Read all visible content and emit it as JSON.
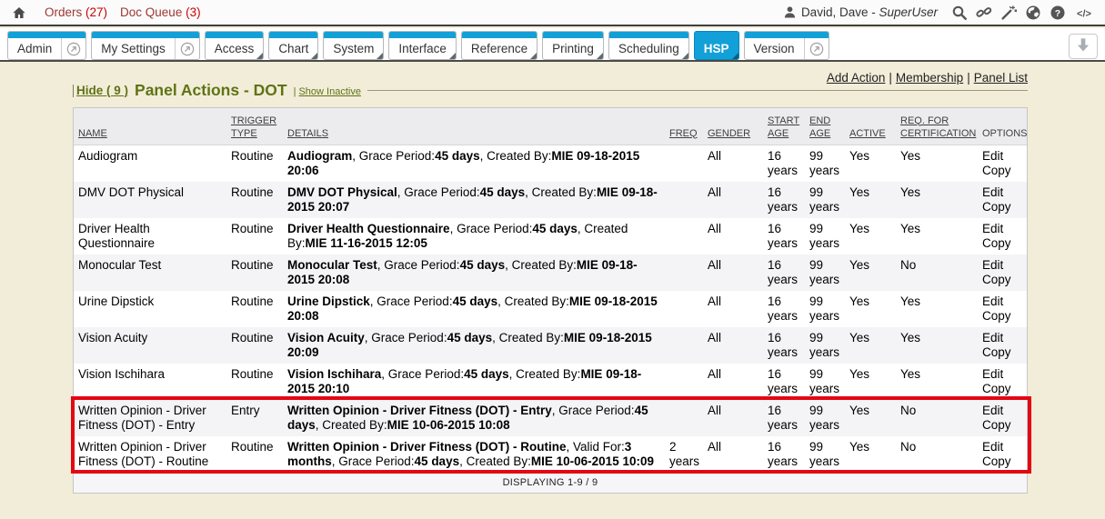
{
  "topbar": {
    "home_icon": "home-icon",
    "links": [
      {
        "label": "Orders",
        "count": "(27)"
      },
      {
        "label": "Doc Queue",
        "count": "(3)"
      }
    ],
    "user": {
      "icon": "person-icon",
      "name": "David, Dave - ",
      "role": "SuperUser"
    },
    "icons": [
      "search-icon",
      "link-icon",
      "wand-icon",
      "globe-icon",
      "help-icon",
      "code-icon"
    ]
  },
  "tabbar": {
    "tabs": [
      {
        "label": "Admin",
        "popout": true
      },
      {
        "label": "My Settings",
        "popout": true
      },
      {
        "label": "Access",
        "submenu": true
      },
      {
        "label": "Chart",
        "submenu": true
      },
      {
        "label": "System",
        "submenu": true
      },
      {
        "label": "Interface",
        "submenu": true
      },
      {
        "label": "Reference",
        "submenu": true
      },
      {
        "label": "Printing",
        "submenu": true
      },
      {
        "label": "Scheduling",
        "submenu": true
      },
      {
        "label": "HSP",
        "submenu": true,
        "active": true
      },
      {
        "label": "Version",
        "popout": true
      }
    ],
    "collapse_icon": "arrow-down-icon"
  },
  "actions": {
    "links": [
      "Add Action",
      "Membership",
      "Panel List"
    ]
  },
  "panel": {
    "hide_label": "Hide ( 9 )",
    "title": "Panel Actions - DOT",
    "show_inactive_label": "Show Inactive"
  },
  "table": {
    "columns": [
      {
        "label": "NAME",
        "sortable": true
      },
      {
        "label": "TRIGGER TYPE",
        "sortable": true
      },
      {
        "label": "DETAILS",
        "sortable": true
      },
      {
        "label": "FREQ",
        "sortable": true
      },
      {
        "label": "GENDER",
        "sortable": true
      },
      {
        "label": "START AGE",
        "sortable": true
      },
      {
        "label": "END AGE",
        "sortable": true
      },
      {
        "label": "ACTIVE",
        "sortable": true
      },
      {
        "label": "REQ. FOR CERTIFICATION",
        "sortable": true
      },
      {
        "label": "OPTIONS",
        "sortable": false
      }
    ],
    "rows": [
      {
        "name": "Audiogram",
        "trigger": "Routine",
        "details": [
          {
            "t": "Audiogram",
            "b": true
          },
          {
            "t": ", Grace Period:",
            "b": false
          },
          {
            "t": "45 days",
            "b": true
          },
          {
            "t": ", Created By:",
            "b": false
          },
          {
            "t": "MIE 09-18-2015 20:06",
            "b": true
          }
        ],
        "freq": "",
        "gender": "All",
        "start_age": "16 years",
        "end_age": "99 years",
        "active": "Yes",
        "req_cert": "Yes",
        "options": [
          "Edit",
          "Copy"
        ],
        "highlighted": false
      },
      {
        "name": "DMV DOT Physical",
        "trigger": "Routine",
        "details": [
          {
            "t": "DMV DOT Physical",
            "b": true
          },
          {
            "t": ", Grace Period:",
            "b": false
          },
          {
            "t": "45 days",
            "b": true
          },
          {
            "t": ", Created By:",
            "b": false
          },
          {
            "t": "MIE 09-18-2015 20:07",
            "b": true
          }
        ],
        "freq": "",
        "gender": "All",
        "start_age": "16 years",
        "end_age": "99 years",
        "active": "Yes",
        "req_cert": "Yes",
        "options": [
          "Edit",
          "Copy"
        ],
        "highlighted": false
      },
      {
        "name": "Driver Health Questionnaire",
        "trigger": "Routine",
        "details": [
          {
            "t": "Driver Health Questionnaire",
            "b": true
          },
          {
            "t": ", Grace Period:",
            "b": false
          },
          {
            "t": "45 days",
            "b": true
          },
          {
            "t": ", Created By:",
            "b": false
          },
          {
            "t": "MIE 11-16-2015 12:05",
            "b": true
          }
        ],
        "freq": "",
        "gender": "All",
        "start_age": "16 years",
        "end_age": "99 years",
        "active": "Yes",
        "req_cert": "Yes",
        "options": [
          "Edit",
          "Copy"
        ],
        "highlighted": false
      },
      {
        "name": "Monocular Test",
        "trigger": "Routine",
        "details": [
          {
            "t": "Monocular Test",
            "b": true
          },
          {
            "t": ", Grace Period:",
            "b": false
          },
          {
            "t": "45 days",
            "b": true
          },
          {
            "t": ", Created By:",
            "b": false
          },
          {
            "t": "MIE 09-18-2015 20:08",
            "b": true
          }
        ],
        "freq": "",
        "gender": "All",
        "start_age": "16 years",
        "end_age": "99 years",
        "active": "Yes",
        "req_cert": "No",
        "options": [
          "Edit",
          "Copy"
        ],
        "highlighted": false
      },
      {
        "name": "Urine Dipstick",
        "trigger": "Routine",
        "details": [
          {
            "t": "Urine Dipstick",
            "b": true
          },
          {
            "t": ", Grace Period:",
            "b": false
          },
          {
            "t": "45 days",
            "b": true
          },
          {
            "t": ", Created By:",
            "b": false
          },
          {
            "t": "MIE 09-18-2015 20:08",
            "b": true
          }
        ],
        "freq": "",
        "gender": "All",
        "start_age": "16 years",
        "end_age": "99 years",
        "active": "Yes",
        "req_cert": "Yes",
        "options": [
          "Edit",
          "Copy"
        ],
        "highlighted": false
      },
      {
        "name": "Vision Acuity",
        "trigger": "Routine",
        "details": [
          {
            "t": "Vision Acuity",
            "b": true
          },
          {
            "t": ", Grace Period:",
            "b": false
          },
          {
            "t": "45 days",
            "b": true
          },
          {
            "t": ", Created By:",
            "b": false
          },
          {
            "t": "MIE 09-18-2015 20:09",
            "b": true
          }
        ],
        "freq": "",
        "gender": "All",
        "start_age": "16 years",
        "end_age": "99 years",
        "active": "Yes",
        "req_cert": "Yes",
        "options": [
          "Edit",
          "Copy"
        ],
        "highlighted": false
      },
      {
        "name": "Vision Ischihara",
        "trigger": "Routine",
        "details": [
          {
            "t": "Vision Ischihara",
            "b": true
          },
          {
            "t": ", Grace Period:",
            "b": false
          },
          {
            "t": "45 days",
            "b": true
          },
          {
            "t": ", Created By:",
            "b": false
          },
          {
            "t": "MIE 09-18-2015 20:10",
            "b": true
          }
        ],
        "freq": "",
        "gender": "All",
        "start_age": "16 years",
        "end_age": "99 years",
        "active": "Yes",
        "req_cert": "Yes",
        "options": [
          "Edit",
          "Copy"
        ],
        "highlighted": false
      },
      {
        "name": "Written Opinion - Driver Fitness (DOT) - Entry",
        "trigger": "Entry",
        "details": [
          {
            "t": "Written Opinion - Driver Fitness (DOT) - Entry",
            "b": true
          },
          {
            "t": ", Grace Period:",
            "b": false
          },
          {
            "t": "45 days",
            "b": true
          },
          {
            "t": ", Created By:",
            "b": false
          },
          {
            "t": "MIE 10-06-2015 10:08",
            "b": true
          }
        ],
        "freq": "",
        "gender": "All",
        "start_age": "16 years",
        "end_age": "99 years",
        "active": "Yes",
        "req_cert": "No",
        "options": [
          "Edit",
          "Copy"
        ],
        "highlighted": true
      },
      {
        "name": "Written Opinion - Driver Fitness (DOT) - Routine",
        "trigger": "Routine",
        "details": [
          {
            "t": "Written Opinion - Driver Fitness (DOT) - Routine",
            "b": true
          },
          {
            "t": ", Valid For:",
            "b": false
          },
          {
            "t": "3 months",
            "b": true
          },
          {
            "t": ", Grace Period:",
            "b": false
          },
          {
            "t": "45 days",
            "b": true
          },
          {
            "t": ", Created By:",
            "b": false
          },
          {
            "t": "MIE 10-06-2015 10:09",
            "b": true
          }
        ],
        "freq": "2 years",
        "gender": "All",
        "start_age": "16 years",
        "end_age": "99 years",
        "active": "Yes",
        "req_cert": "No",
        "options": [
          "Edit",
          "Copy"
        ],
        "highlighted": true
      }
    ],
    "footer": "DISPLAYING 1-9 / 9"
  },
  "colors": {
    "tab_blue": "#12a0d8",
    "olive_green": "#5f7314",
    "highlight_red": "#e30613",
    "count_red": "#cc0000",
    "label_maroon": "#9c3832",
    "page_cream": "#f2edd9"
  }
}
